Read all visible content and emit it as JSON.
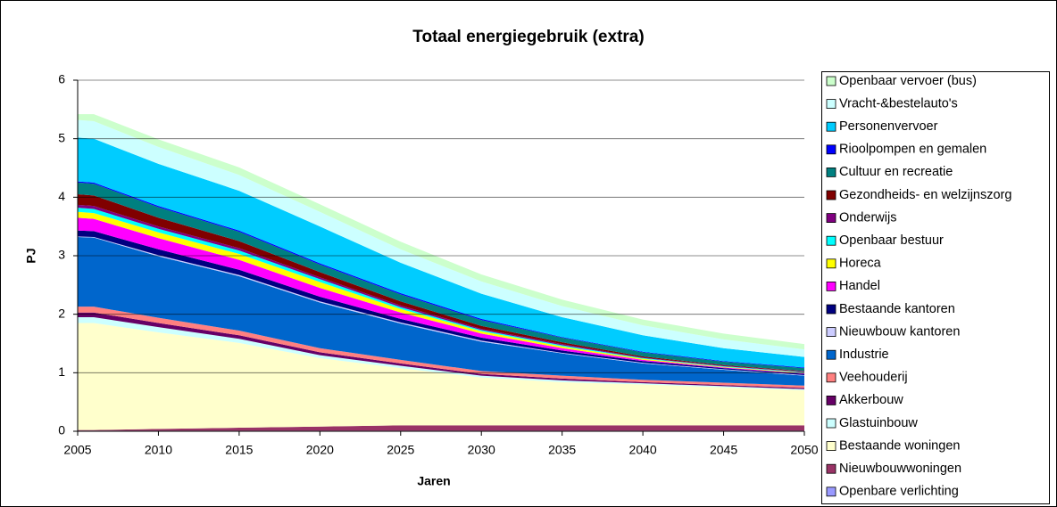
{
  "chart_data": {
    "type": "stacked-area",
    "title": "Totaal energiegebruik (extra)",
    "x_label": "Jaren",
    "y_label": "PJ",
    "x": [
      2005,
      2006,
      2010,
      2015,
      2020,
      2025,
      2030,
      2035,
      2040,
      2045,
      2050
    ],
    "xlim": [
      2005,
      2050
    ],
    "xticks": [
      2005,
      2010,
      2015,
      2020,
      2025,
      2030,
      2035,
      2040,
      2045,
      2050
    ],
    "ylim": [
      0,
      6
    ],
    "yticks": [
      0,
      1,
      2,
      3,
      4,
      5,
      6
    ],
    "grid": true,
    "legend": "right",
    "series": [
      {
        "name": "Openbare verlichting",
        "color": "#9999ff",
        "values": [
          0.01,
          0.01,
          0.01,
          0.01,
          0.01,
          0.01,
          0.01,
          0.01,
          0.01,
          0.01,
          0.01
        ]
      },
      {
        "name": "Nieuwbouwwoningen",
        "color": "#993366",
        "values": [
          0.01,
          0.01,
          0.03,
          0.05,
          0.07,
          0.09,
          0.09,
          0.09,
          0.09,
          0.09,
          0.09
        ]
      },
      {
        "name": "Bestaande woningen",
        "color": "#ffffcc",
        "values": [
          1.83,
          1.83,
          1.65,
          1.45,
          1.17,
          0.98,
          0.82,
          0.74,
          0.7,
          0.65,
          0.6
        ]
      },
      {
        "name": "Glastuinbouw",
        "color": "#ccffff",
        "values": [
          0.1,
          0.1,
          0.09,
          0.07,
          0.05,
          0.04,
          0.03,
          0.03,
          0.02,
          0.02,
          0.02
        ]
      },
      {
        "name": "Akkerbouw",
        "color": "#660066",
        "values": [
          0.08,
          0.08,
          0.07,
          0.06,
          0.05,
          0.04,
          0.03,
          0.03,
          0.02,
          0.02,
          0.02
        ]
      },
      {
        "name": "Veehouderij",
        "color": "#ff8080",
        "values": [
          0.1,
          0.1,
          0.09,
          0.08,
          0.07,
          0.06,
          0.05,
          0.05,
          0.04,
          0.04,
          0.04
        ]
      },
      {
        "name": "Industrie",
        "color": "#0066cc",
        "values": [
          1.19,
          1.18,
          1.05,
          0.93,
          0.78,
          0.62,
          0.5,
          0.38,
          0.28,
          0.22,
          0.17
        ]
      },
      {
        "name": "Nieuwbouw kantoren",
        "color": "#ccccff",
        "values": [
          0.01,
          0.01,
          0.02,
          0.02,
          0.02,
          0.02,
          0.02,
          0.01,
          0.01,
          0.01,
          0.01
        ]
      },
      {
        "name": "Bestaande kantoren",
        "color": "#000080",
        "values": [
          0.1,
          0.1,
          0.1,
          0.09,
          0.08,
          0.06,
          0.05,
          0.04,
          0.03,
          0.02,
          0.02
        ]
      },
      {
        "name": "Handel",
        "color": "#ff00ff",
        "values": [
          0.22,
          0.21,
          0.19,
          0.17,
          0.15,
          0.11,
          0.07,
          0.04,
          0.02,
          0.01,
          0.01
        ]
      },
      {
        "name": "Horeca",
        "color": "#ffff00",
        "values": [
          0.1,
          0.1,
          0.1,
          0.1,
          0.1,
          0.06,
          0.04,
          0.03,
          0.02,
          0.01,
          0.01
        ]
      },
      {
        "name": "Openbaar bestuur",
        "color": "#00ffff",
        "values": [
          0.07,
          0.07,
          0.06,
          0.06,
          0.05,
          0.03,
          0.02,
          0.02,
          0.01,
          0.01,
          0.01
        ]
      },
      {
        "name": "Onderwijs",
        "color": "#800080",
        "values": [
          0.05,
          0.05,
          0.04,
          0.04,
          0.03,
          0.03,
          0.02,
          0.02,
          0.01,
          0.01,
          0.01
        ]
      },
      {
        "name": "Gezondheids- en welzijnszorg",
        "color": "#800000",
        "values": [
          0.18,
          0.18,
          0.15,
          0.12,
          0.09,
          0.07,
          0.05,
          0.03,
          0.02,
          0.01,
          0.01
        ]
      },
      {
        "name": "Cultuur en recreatie",
        "color": "#008080",
        "values": [
          0.2,
          0.2,
          0.18,
          0.16,
          0.13,
          0.12,
          0.1,
          0.08,
          0.07,
          0.06,
          0.05
        ]
      },
      {
        "name": "Rioolpompen en gemalen",
        "color": "#0000ff",
        "values": [
          0.02,
          0.02,
          0.02,
          0.02,
          0.02,
          0.02,
          0.02,
          0.01,
          0.01,
          0.01,
          0.01
        ]
      },
      {
        "name": "Personenvervoer",
        "color": "#00ccff",
        "values": [
          0.75,
          0.75,
          0.72,
          0.68,
          0.63,
          0.52,
          0.43,
          0.34,
          0.28,
          0.22,
          0.18
        ]
      },
      {
        "name": "Vracht-&bestelauto's",
        "color": "#ccffff",
        "values": [
          0.3,
          0.3,
          0.29,
          0.27,
          0.25,
          0.23,
          0.21,
          0.19,
          0.17,
          0.15,
          0.13
        ]
      },
      {
        "name": "Openbaar vervoer (bus)",
        "color": "#ccffcc",
        "values": [
          0.1,
          0.12,
          0.13,
          0.13,
          0.13,
          0.13,
          0.12,
          0.11,
          0.1,
          0.1,
          0.09
        ]
      }
    ]
  }
}
